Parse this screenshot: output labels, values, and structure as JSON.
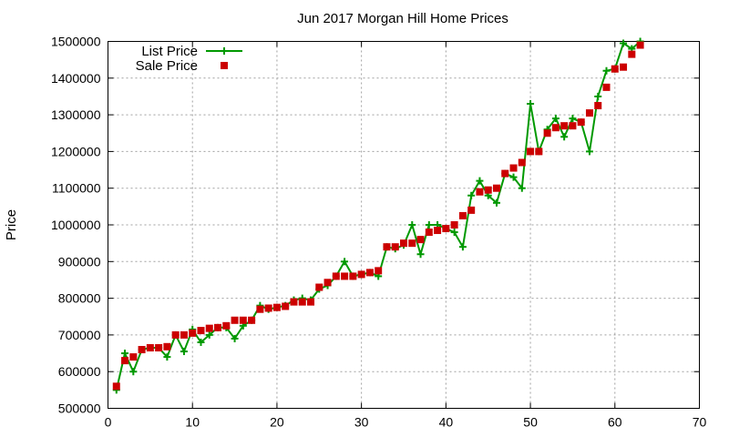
{
  "chart_data": {
    "type": "line",
    "title": "Jun 2017 Morgan Hill Home Prices",
    "xlabel": "",
    "ylabel": "Price",
    "xlim": [
      0,
      70
    ],
    "ylim": [
      500000,
      1500000
    ],
    "xticks": [
      0,
      10,
      20,
      30,
      40,
      50,
      60,
      70
    ],
    "yticks": [
      500000,
      600000,
      700000,
      800000,
      900000,
      1000000,
      1100000,
      1200000,
      1300000,
      1400000,
      1500000
    ],
    "grid": true,
    "legend": "top-left",
    "series": [
      {
        "name": "List Price",
        "style": "line-plus",
        "color": "#009900",
        "x": [
          1,
          2,
          3,
          4,
          5,
          6,
          7,
          8,
          9,
          10,
          11,
          12,
          13,
          14,
          15,
          16,
          17,
          18,
          19,
          20,
          21,
          22,
          23,
          24,
          25,
          26,
          27,
          28,
          29,
          30,
          31,
          32,
          33,
          34,
          35,
          36,
          37,
          38,
          39,
          40,
          41,
          42,
          43,
          44,
          45,
          46,
          47,
          48,
          49,
          50,
          51,
          52,
          53,
          54,
          55,
          56,
          57,
          58,
          59,
          60,
          61,
          62,
          63
        ],
        "values": [
          550000,
          650000,
          600000,
          660000,
          665000,
          665000,
          640000,
          700000,
          655000,
          715000,
          680000,
          700000,
          720000,
          720000,
          690000,
          725000,
          740000,
          780000,
          770000,
          775000,
          780000,
          795000,
          800000,
          795000,
          825000,
          835000,
          860000,
          900000,
          860000,
          865000,
          870000,
          860000,
          940000,
          935000,
          945000,
          1000000,
          920000,
          1000000,
          1000000,
          990000,
          980000,
          940000,
          1080000,
          1120000,
          1080000,
          1060000,
          1140000,
          1130000,
          1100000,
          1330000,
          1200000,
          1260000,
          1290000,
          1240000,
          1290000,
          1280000,
          1200000,
          1350000,
          1420000,
          1425000,
          1495000,
          1480000,
          1500000
        ]
      },
      {
        "name": "Sale Price",
        "style": "points-square",
        "color": "#cc0000",
        "x": [
          1,
          2,
          3,
          4,
          5,
          6,
          7,
          8,
          9,
          10,
          11,
          12,
          13,
          14,
          15,
          16,
          17,
          18,
          19,
          20,
          21,
          22,
          23,
          24,
          25,
          26,
          27,
          28,
          29,
          30,
          31,
          32,
          33,
          34,
          35,
          36,
          37,
          38,
          39,
          40,
          41,
          42,
          43,
          44,
          45,
          46,
          47,
          48,
          49,
          50,
          51,
          52,
          53,
          54,
          55,
          56,
          57,
          58,
          59,
          60,
          61,
          62,
          63
        ],
        "values": [
          560000,
          630000,
          640000,
          660000,
          665000,
          665000,
          668000,
          700000,
          700000,
          705000,
          712000,
          718000,
          720000,
          725000,
          740000,
          740000,
          740000,
          770000,
          773000,
          775000,
          778000,
          790000,
          790000,
          790000,
          830000,
          843000,
          860000,
          860000,
          860000,
          865000,
          870000,
          875000,
          940000,
          940000,
          950000,
          950000,
          960000,
          980000,
          985000,
          990000,
          1000000,
          1025000,
          1040000,
          1090000,
          1095000,
          1100000,
          1140000,
          1155000,
          1170000,
          1200000,
          1200000,
          1250000,
          1265000,
          1270000,
          1270000,
          1280000,
          1305000,
          1325000,
          1375000,
          1425000,
          1430000,
          1465000,
          1490000
        ]
      }
    ]
  }
}
